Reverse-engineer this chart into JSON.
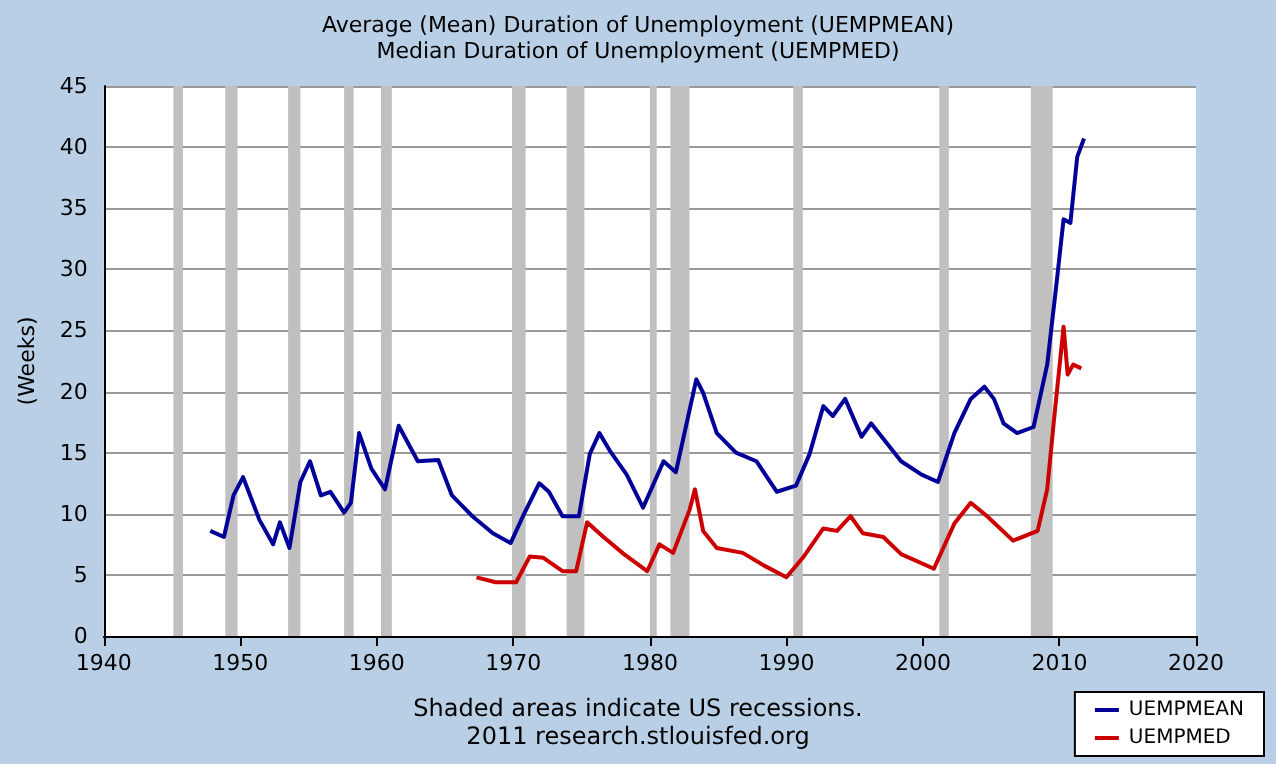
{
  "chart_data": {
    "type": "line",
    "title": "Average (Mean) Duration of Unemployment (UEMPMEAN)",
    "subtitle": "Median Duration of Unemployment (UEMPMED)",
    "ylabel": "(Weeks)",
    "annotations": [
      "Shaded areas indicate US recessions.",
      "2011 research.stlouisfed.org"
    ],
    "xlim": [
      1940,
      2020
    ],
    "xticks": [
      1940,
      1950,
      1960,
      1970,
      1980,
      1990,
      2000,
      2010,
      2020
    ],
    "ylim": [
      0,
      45
    ],
    "yticks": [
      0,
      5,
      10,
      15,
      20,
      25,
      30,
      35,
      40,
      45
    ],
    "grid": "y",
    "legend": "bottom right",
    "marker": "none",
    "line_style": "solid",
    "bands": [
      {
        "axis": "x",
        "from": 1945.1,
        "to": 1945.8,
        "color": "#c0c0c0"
      },
      {
        "axis": "x",
        "from": 1948.9,
        "to": 1949.8,
        "color": "#c0c0c0"
      },
      {
        "axis": "x",
        "from": 1953.5,
        "to": 1954.4,
        "color": "#c0c0c0"
      },
      {
        "axis": "x",
        "from": 1957.6,
        "to": 1958.3,
        "color": "#c0c0c0"
      },
      {
        "axis": "x",
        "from": 1960.3,
        "to": 1961.1,
        "color": "#c0c0c0"
      },
      {
        "axis": "x",
        "from": 1969.9,
        "to": 1970.9,
        "color": "#c0c0c0"
      },
      {
        "axis": "x",
        "from": 1973.9,
        "to": 1975.2,
        "color": "#c0c0c0"
      },
      {
        "axis": "x",
        "from": 1980.0,
        "to": 1980.5,
        "color": "#c0c0c0"
      },
      {
        "axis": "x",
        "from": 1981.5,
        "to": 1982.9,
        "color": "#c0c0c0"
      },
      {
        "axis": "x",
        "from": 1990.5,
        "to": 1991.2,
        "color": "#c0c0c0"
      },
      {
        "axis": "x",
        "from": 2001.2,
        "to": 2001.9,
        "color": "#c0c0c0"
      },
      {
        "axis": "x",
        "from": 2007.9,
        "to": 2009.5,
        "color": "#c0c0c0"
      }
    ],
    "series": [
      {
        "name": "UEMPMEAN",
        "color": "#000099",
        "x": [
          1947.8,
          1948.8,
          1949.5,
          1950.2,
          1951.4,
          1952.4,
          1952.9,
          1953.6,
          1954.4,
          1955.1,
          1955.9,
          1956.6,
          1957.6,
          1958.1,
          1958.7,
          1959.6,
          1960.6,
          1961.6,
          1963.0,
          1964.5,
          1965.5,
          1967.0,
          1968.5,
          1969.8,
          1970.7,
          1971.9,
          1972.6,
          1973.6,
          1974.8,
          1975.6,
          1976.3,
          1977.1,
          1978.3,
          1979.5,
          1981.0,
          1981.9,
          1983.4,
          1983.9,
          1984.9,
          1986.3,
          1987.8,
          1989.3,
          1990.7,
          1991.7,
          1992.7,
          1993.4,
          1994.3,
          1995.5,
          1996.2,
          1997.4,
          1998.4,
          1999.9,
          2001.1,
          2002.3,
          2003.5,
          2004.5,
          2005.2,
          2005.9,
          2006.9,
          2008.1,
          2009.1,
          2009.8,
          2010.3,
          2010.8,
          2011.3,
          2011.8
        ],
        "values": [
          8.6,
          8.1,
          11.5,
          13.0,
          9.5,
          7.5,
          9.3,
          7.2,
          12.6,
          14.3,
          11.5,
          11.8,
          10.1,
          10.9,
          16.6,
          13.7,
          12.0,
          17.2,
          14.3,
          14.4,
          11.5,
          9.8,
          8.4,
          7.6,
          9.8,
          12.5,
          11.8,
          9.8,
          9.8,
          14.9,
          16.6,
          15.1,
          13.2,
          10.5,
          14.3,
          13.4,
          21.0,
          19.9,
          16.6,
          15.0,
          14.3,
          11.8,
          12.3,
          14.9,
          18.8,
          18.0,
          19.4,
          16.3,
          17.4,
          15.7,
          14.3,
          13.2,
          12.6,
          16.6,
          19.4,
          20.4,
          19.4,
          17.4,
          16.6,
          17.1,
          22.2,
          29.0,
          34.1,
          33.8,
          39.2,
          40.7
        ]
      },
      {
        "name": "UEMPMED",
        "color": "#cc0000",
        "x": [
          1967.3,
          1968.7,
          1970.2,
          1971.2,
          1972.2,
          1973.6,
          1974.6,
          1975.4,
          1976.6,
          1978.1,
          1979.8,
          1980.7,
          1981.7,
          1982.9,
          1983.3,
          1983.9,
          1984.9,
          1986.8,
          1988.3,
          1990.0,
          1991.2,
          1992.7,
          1993.7,
          1994.7,
          1995.6,
          1997.1,
          1998.4,
          2000.8,
          2002.3,
          2003.5,
          2004.7,
          2006.6,
          2008.4,
          2009.1,
          2009.6,
          2010.3,
          2010.6,
          2011.0,
          2011.6
        ],
        "values": [
          4.8,
          4.4,
          4.4,
          6.5,
          6.4,
          5.3,
          5.3,
          9.3,
          8.1,
          6.7,
          5.3,
          7.5,
          6.8,
          10.3,
          12.0,
          8.6,
          7.2,
          6.8,
          5.8,
          4.8,
          6.4,
          8.8,
          8.6,
          9.8,
          8.4,
          8.1,
          6.7,
          5.5,
          9.2,
          10.9,
          9.8,
          7.8,
          8.6,
          12.0,
          17.7,
          25.3,
          21.4,
          22.2,
          21.9
        ]
      }
    ]
  }
}
